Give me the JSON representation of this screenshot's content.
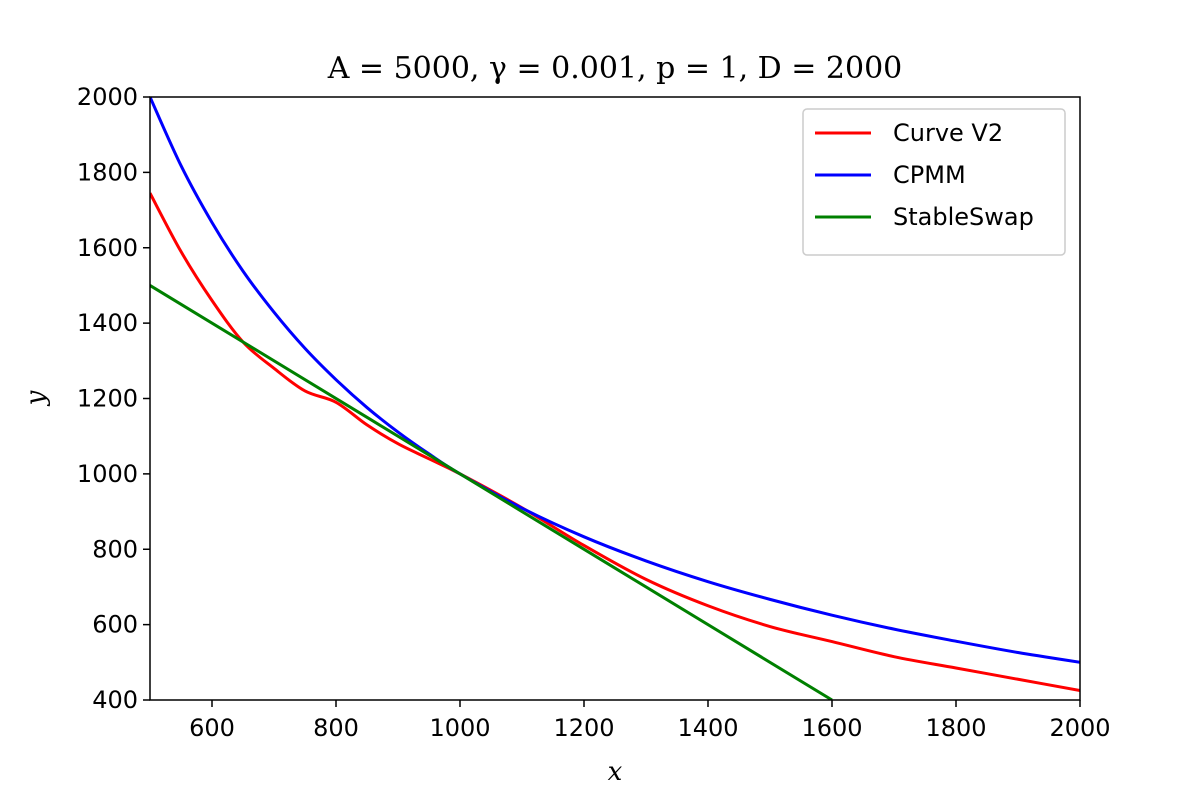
{
  "chart_data": {
    "type": "line",
    "title": "A = 5000, γ = 0.001, p = 1, D = 2000",
    "xlabel": "x",
    "ylabel": "y",
    "xlim": [
      500,
      2000
    ],
    "ylim": [
      400,
      2000
    ],
    "xticks": [
      600,
      800,
      1000,
      1200,
      1400,
      1600,
      1800,
      2000
    ],
    "yticks": [
      400,
      600,
      800,
      1000,
      1200,
      1400,
      1600,
      1800,
      2000
    ],
    "grid": false,
    "legend_position": "top-right",
    "series": [
      {
        "name": "Curve V2",
        "color": "#ff0000",
        "x": [
          500,
          550,
          600,
          650,
          700,
          750,
          800,
          850,
          900,
          950,
          1000,
          1100,
          1200,
          1300,
          1400,
          1500,
          1600,
          1700,
          1800,
          1900,
          2000
        ],
        "y": [
          1745,
          1590,
          1460,
          1350,
          1280,
          1220,
          1190,
          1130,
          1080,
          1040,
          1000,
          910,
          810,
          720,
          650,
          595,
          555,
          515,
          485,
          455,
          425
        ]
      },
      {
        "name": "CPMM",
        "color": "#0000ff",
        "x": [
          500,
          550,
          600,
          650,
          700,
          750,
          800,
          850,
          900,
          950,
          1000,
          1100,
          1200,
          1300,
          1400,
          1500,
          1600,
          1700,
          1800,
          1900,
          2000
        ],
        "y": [
          2000,
          1818,
          1667,
          1538,
          1429,
          1333,
          1250,
          1176,
          1111,
          1053,
          1000,
          909,
          833,
          769,
          714,
          667,
          625,
          588,
          556,
          526,
          500
        ]
      },
      {
        "name": "StableSwap",
        "color": "#008000",
        "x": [
          500,
          1000,
          1600
        ],
        "y": [
          1500,
          1000,
          400
        ]
      }
    ]
  }
}
